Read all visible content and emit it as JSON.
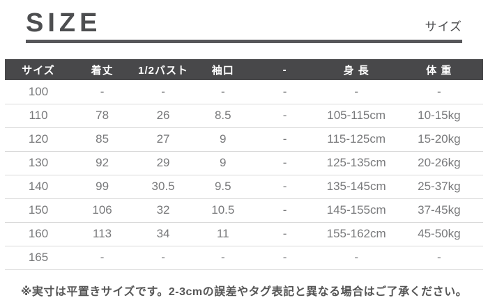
{
  "page": {
    "title": "SIZE",
    "subtitle": "サイズ",
    "note": "※実寸は平置きサイズです。2-3cmの誤差やタグ表記と異なる場合はご了承ください。"
  },
  "size_table": {
    "columns": [
      "サイズ",
      "着丈",
      "1/2バスト",
      "袖口",
      "-",
      "身 長",
      "体 重"
    ],
    "rows": [
      [
        "100",
        "-",
        "-",
        "-",
        "-",
        "-",
        "-"
      ],
      [
        "110",
        "78",
        "26",
        "8.5",
        "-",
        "105-115cm",
        "10-15kg"
      ],
      [
        "120",
        "85",
        "27",
        "9",
        "-",
        "115-125cm",
        "15-20kg"
      ],
      [
        "130",
        "92",
        "29",
        "9",
        "-",
        "125-135cm",
        "20-26kg"
      ],
      [
        "140",
        "99",
        "30.5",
        "9.5",
        "-",
        "135-145cm",
        "25-37kg"
      ],
      [
        "150",
        "106",
        "32",
        "10.5",
        "-",
        "145-155cm",
        "37-45kg"
      ],
      [
        "160",
        "113",
        "34",
        "11",
        "-",
        "155-162cm",
        "45-50kg"
      ],
      [
        "165",
        "-",
        "-",
        "-",
        "-",
        "-",
        "-"
      ]
    ]
  },
  "colors": {
    "header_bg": "#48484a",
    "header_text": "#ffffff",
    "title_text": "#4d4e50",
    "body_text": "#78797b",
    "row_border": "#d9d9d9",
    "note_text": "#565656",
    "divider": "#57575a"
  }
}
